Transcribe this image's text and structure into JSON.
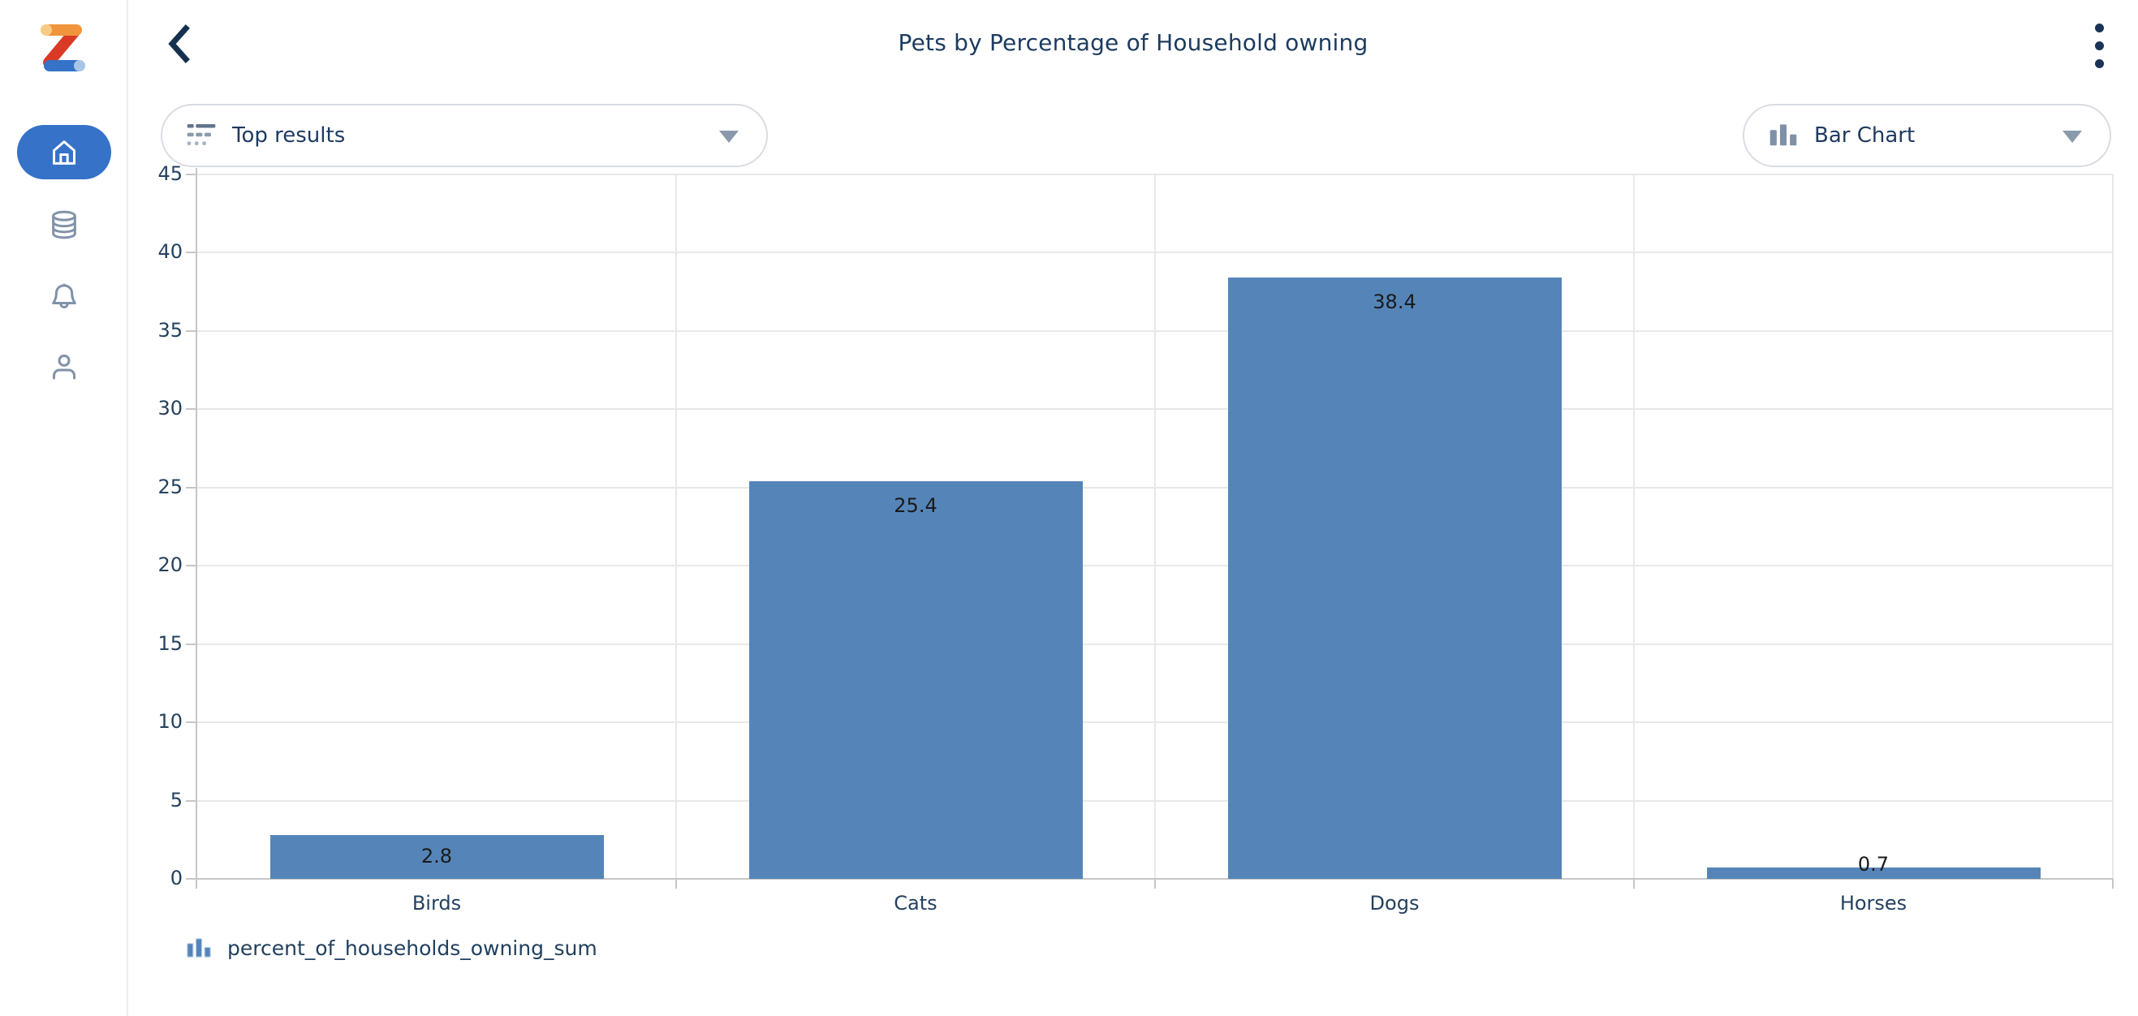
{
  "header": {
    "title": "Pets by Percentage of Household owning"
  },
  "controls": {
    "results_dropdown": {
      "label": "Top results"
    },
    "chart_type_dropdown": {
      "label": "Bar Chart"
    }
  },
  "sidebar": {
    "items": [
      {
        "name": "home",
        "active": true
      },
      {
        "name": "data",
        "active": false
      },
      {
        "name": "notifications",
        "active": false
      },
      {
        "name": "profile",
        "active": false
      }
    ]
  },
  "chart_data": {
    "type": "bar",
    "title": "Pets by Percentage of Household owning",
    "categories": [
      "Birds",
      "Cats",
      "Dogs",
      "Horses"
    ],
    "values": [
      2.8,
      25.4,
      38.4,
      0.7
    ],
    "series_name": "percent_of_households_owning_sum",
    "xlabel": "",
    "ylabel": "",
    "ylim": [
      0,
      45
    ],
    "yticks": [
      0,
      5,
      10,
      15,
      20,
      25,
      30,
      35,
      40,
      45
    ],
    "grid": true,
    "bar_color": "#5585b8",
    "legend": {
      "label": "percent_of_households_owning_sum",
      "position": "bottom-left"
    }
  },
  "colors": {
    "accent_blue": "#3572c8",
    "bar_blue": "#5585b8",
    "navy_text": "#1c3b5e",
    "icon_slate": "#8092a8"
  }
}
